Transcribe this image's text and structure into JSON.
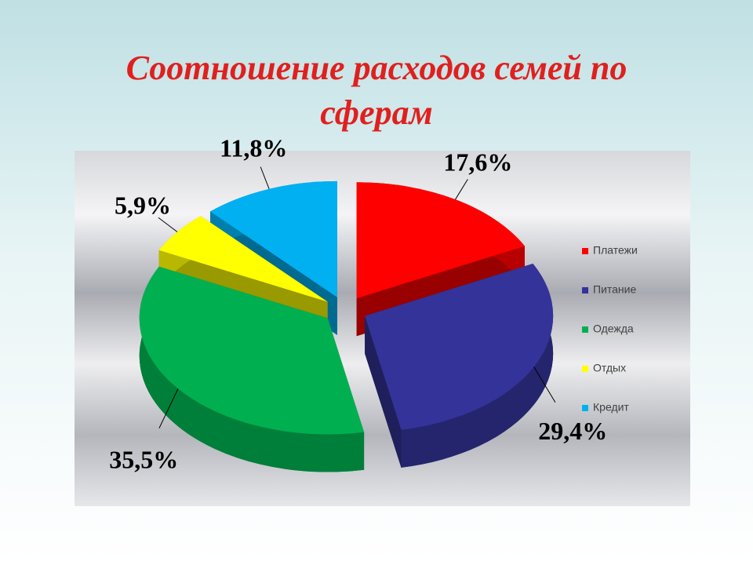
{
  "chart_data": {
    "type": "pie",
    "title": "Соотношение расходов семей по сферам",
    "categories": [
      "Платежи",
      "Питание",
      "Одежда",
      "Отдых",
      "Кредит"
    ],
    "values": [
      17.6,
      29.4,
      35.5,
      5.9,
      11.8
    ],
    "value_labels": [
      "17,6%",
      "29,4%",
      "35,5%",
      "5,9%",
      "11,8%"
    ],
    "colors": [
      "#ff0000",
      "#333399",
      "#00b050",
      "#ffff00",
      "#00b0f0"
    ],
    "legend": "right"
  }
}
